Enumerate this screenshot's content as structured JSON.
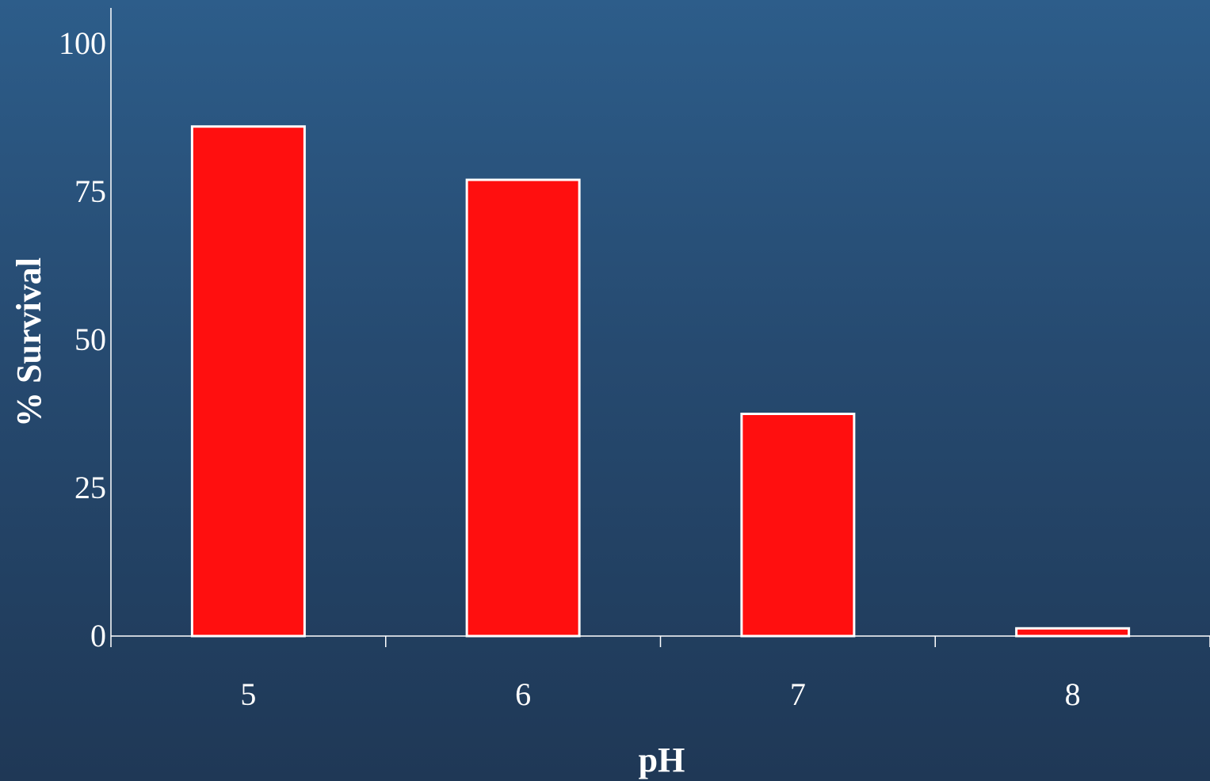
{
  "chart_data": {
    "type": "bar",
    "categories": [
      "5",
      "6",
      "7",
      "8"
    ],
    "values": [
      86,
      77,
      37.5,
      1.3
    ],
    "y_ticks": [
      "0",
      "25",
      "50",
      "75",
      "100"
    ],
    "xlabel": "pH",
    "ylabel": "% Survival",
    "ylim": [
      0,
      105
    ],
    "grid": false,
    "legend": "none",
    "colors": {
      "bar_fill": "#ff0f0f",
      "bar_stroke": "#ffffff",
      "axis": "#ffffff",
      "text": "#ffffff",
      "background_top": "#2d5d8a",
      "background_bottom": "#1f3856"
    }
  }
}
